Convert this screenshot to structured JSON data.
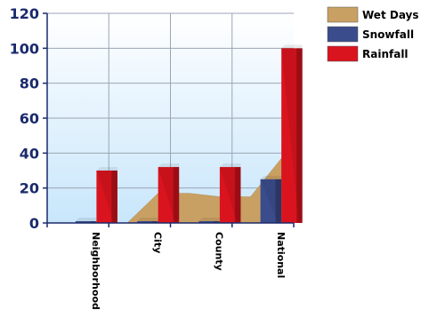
{
  "chart_data": {
    "type": "bar",
    "categories": [
      "Neighborhood",
      "City",
      "County",
      "National"
    ],
    "series": [
      {
        "name": "Wet Days",
        "kind": "area",
        "values": [
          0,
          17,
          15,
          37
        ],
        "color": "#c9a064"
      },
      {
        "name": "Snowfall",
        "kind": "bar",
        "values": [
          1,
          1,
          1,
          25
        ],
        "color": "#3b4c8c"
      },
      {
        "name": "Rainfall",
        "kind": "bar",
        "values": [
          30,
          32,
          32,
          100
        ],
        "color": "#d9141e"
      }
    ],
    "yticks": [
      "0",
      "20",
      "40",
      "60",
      "80",
      "100",
      "120"
    ],
    "ylim": [
      0,
      120
    ],
    "grid": true,
    "legend_position": "top-right"
  }
}
